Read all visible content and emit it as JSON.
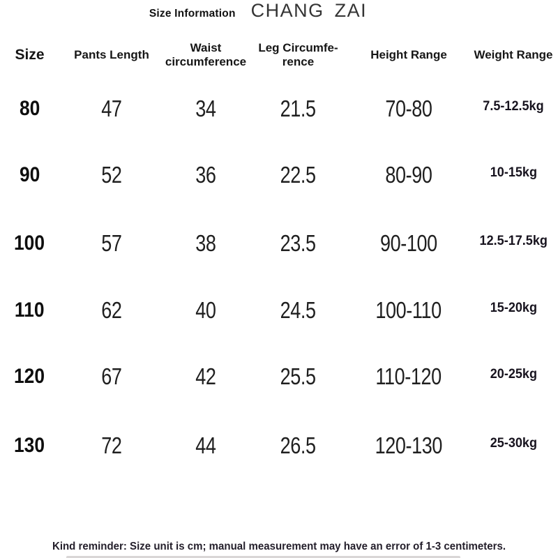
{
  "header": {
    "subtitle": "Size Information",
    "brand": "CHANG ZAI"
  },
  "table": {
    "columns": [
      "Size",
      "Pants Length",
      "Waist\ncircumference",
      "Leg Circumfe-\nrence",
      "Height Range",
      "Weight Range"
    ],
    "rows": [
      {
        "size": "80",
        "pants_length": "47",
        "waist": "34",
        "leg": "21.5",
        "height_range": "70-80",
        "weight_range": "7.5-12.5kg"
      },
      {
        "size": "90",
        "pants_length": "52",
        "waist": "36",
        "leg": "22.5",
        "height_range": "80-90",
        "weight_range": "10-15kg"
      },
      {
        "size": "100",
        "pants_length": "57",
        "waist": "38",
        "leg": "23.5",
        "height_range": "90-100",
        "weight_range": "12.5-17.5kg"
      },
      {
        "size": "110",
        "pants_length": "62",
        "waist": "40",
        "leg": "24.5",
        "height_range": "100-110",
        "weight_range": "15-20kg"
      },
      {
        "size": "120",
        "pants_length": "67",
        "waist": "42",
        "leg": "25.5",
        "height_range": "110-120",
        "weight_range": "20-25kg"
      },
      {
        "size": "130",
        "pants_length": "72",
        "waist": "44",
        "leg": "26.5",
        "height_range": "120-130",
        "weight_range": "25-30kg"
      }
    ]
  },
  "footer": {
    "note": "Kind reminder: Size unit is cm; manual measurement may have an error of 1-3 centimeters.",
    "unit": "cm",
    "error_margin": "1-3 centimeters"
  },
  "colors": {
    "background": "#ffffff",
    "text": "#1c1c1c",
    "brand_text": "#343434"
  }
}
